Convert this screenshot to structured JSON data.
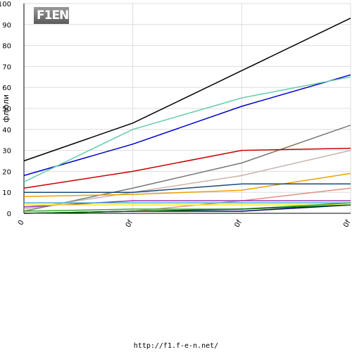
{
  "logo": {
    "text": "F1EN"
  },
  "footer": {
    "text": "http://f1.f-e-n.net/"
  },
  "chart_data": {
    "type": "line",
    "ylabel": "флюли",
    "xlabel": "",
    "title": "",
    "categories": [
      "0",
      "0f",
      "0f",
      "0f"
    ],
    "ylim": [
      0,
      100
    ],
    "yticks": [
      0,
      10,
      20,
      30,
      40,
      50,
      60,
      70,
      80,
      90,
      100
    ],
    "grid": true,
    "series": [
      {
        "color": "#000000",
        "values": [
          25,
          43,
          68,
          93
        ]
      },
      {
        "color": "#0000cc",
        "values": [
          18,
          33,
          51,
          66
        ]
      },
      {
        "color": "#66ccaa",
        "values": [
          15,
          40,
          55,
          65
        ]
      },
      {
        "color": "#777777",
        "values": [
          1,
          12,
          24,
          42
        ]
      },
      {
        "color": "#cc0000",
        "values": [
          12,
          20,
          30,
          31
        ]
      },
      {
        "color": "#c8b4a8",
        "values": [
          2,
          10,
          18,
          30
        ]
      },
      {
        "color": "#f0a000",
        "values": [
          8,
          9,
          11,
          19
        ]
      },
      {
        "color": "#1a4a7a",
        "values": [
          10,
          10,
          14,
          14
        ]
      },
      {
        "color": "#e09080",
        "values": [
          0,
          1,
          6,
          12
        ]
      },
      {
        "color": "#9933aa",
        "values": [
          3,
          6,
          6,
          6
        ]
      },
      {
        "color": "#44aadd",
        "values": [
          5,
          5,
          5,
          5
        ]
      },
      {
        "color": "#ffee00",
        "values": [
          4,
          4,
          4,
          4
        ]
      },
      {
        "color": "#33aa33",
        "values": [
          1,
          2,
          2,
          5
        ]
      },
      {
        "color": "#000066",
        "values": [
          0,
          1,
          1,
          4
        ]
      },
      {
        "color": "#006600",
        "values": [
          0,
          1,
          2,
          4
        ]
      }
    ]
  }
}
